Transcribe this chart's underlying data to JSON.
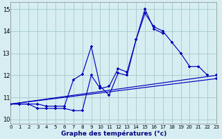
{
  "xlabel": "Graphe des températures (°c)",
  "bg_color": "#d6eef2",
  "grid_color": "#aacccc",
  "line_color": "#0000bb",
  "xlim": [
    0,
    23
  ],
  "ylim": [
    9.8,
    15.3
  ],
  "yticks": [
    10,
    11,
    12,
    13,
    14,
    15
  ],
  "xticks": [
    0,
    1,
    2,
    3,
    4,
    5,
    6,
    7,
    8,
    9,
    10,
    11,
    12,
    13,
    14,
    15,
    16,
    17,
    18,
    19,
    20,
    21,
    22,
    23
  ],
  "series1_x": [
    0,
    1,
    2,
    3,
    4,
    5,
    6,
    7,
    8,
    9,
    10,
    11,
    12,
    13,
    14,
    15,
    16,
    17,
    18,
    19,
    20,
    21,
    22
  ],
  "series1_y": [
    10.7,
    10.7,
    10.7,
    10.7,
    10.6,
    10.6,
    10.6,
    11.8,
    12.05,
    13.3,
    11.5,
    11.1,
    12.1,
    12.0,
    13.6,
    14.8,
    14.2,
    14.0,
    13.5,
    13.0,
    12.4,
    12.4,
    12.0
  ],
  "series2_x": [
    0,
    1,
    2,
    3,
    4,
    5,
    6,
    7,
    8,
    9,
    10,
    11,
    12,
    13,
    14,
    15,
    16,
    17
  ],
  "series2_y": [
    10.7,
    10.7,
    10.7,
    10.5,
    10.5,
    10.5,
    10.5,
    10.4,
    10.4,
    12.0,
    11.4,
    11.5,
    12.3,
    12.15,
    13.6,
    15.0,
    14.1,
    13.9
  ],
  "series3_x": [
    0,
    23
  ],
  "series3_y": [
    10.7,
    12.0
  ],
  "series4_x": [
    0,
    23
  ],
  "series4_y": [
    10.7,
    11.85
  ]
}
